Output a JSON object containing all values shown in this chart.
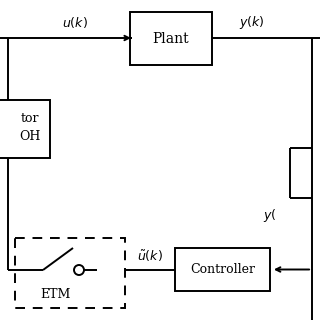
{
  "bg_color": "#ffffff",
  "line_color": "#000000",
  "figsize": [
    3.2,
    3.2
  ],
  "dpi": 100,
  "plant_label": "Plant",
  "controller_label": "Controller",
  "etm_label": "ETM",
  "uk_label": "$u(k)$",
  "yk_label": "$y(k)$",
  "utilde_label": "$\\tilde{u}(k)$",
  "yk_bottom_label": "$y($",
  "actuator_line1": "tor",
  "actuator_line2": "OH"
}
